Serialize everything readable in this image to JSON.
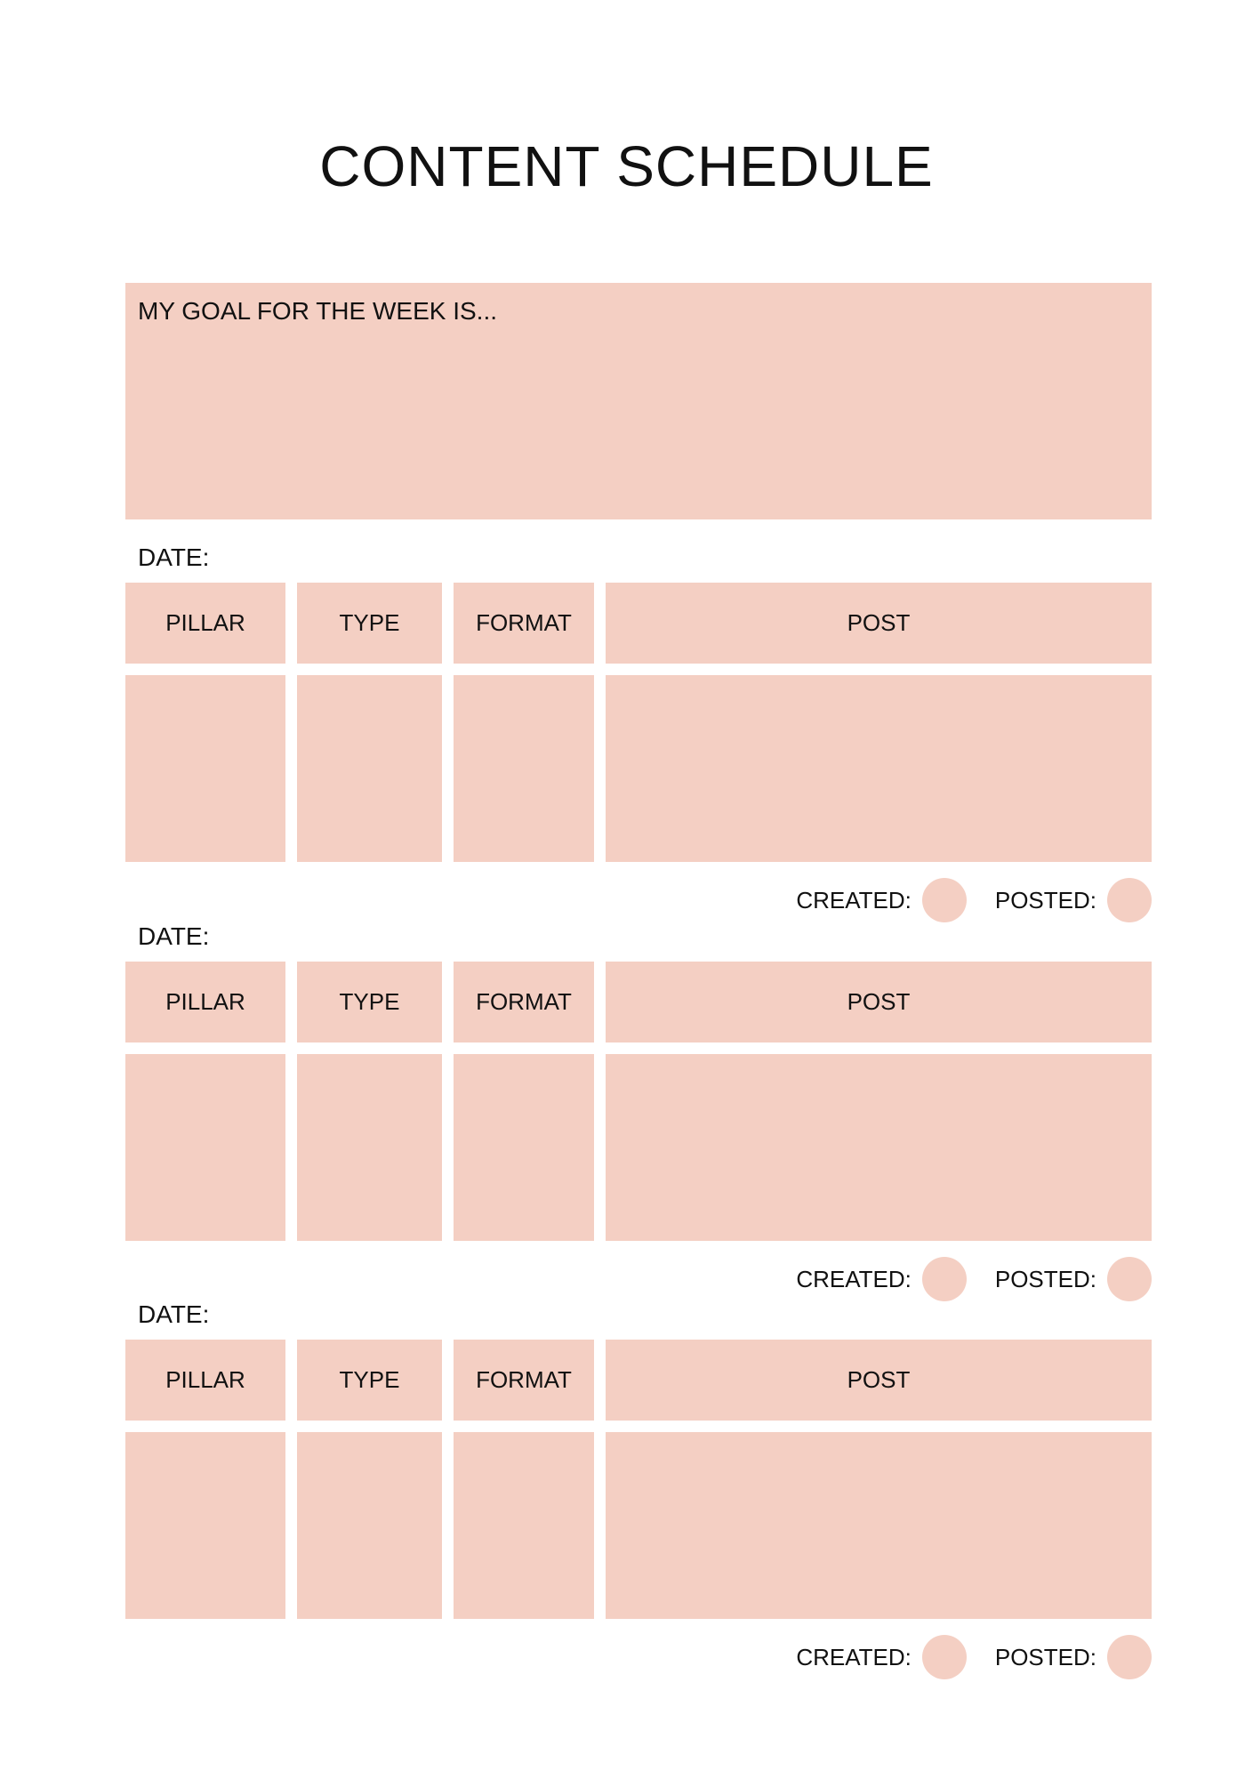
{
  "title": "CONTENT SCHEDULE",
  "goal_label": "MY GOAL FOR THE WEEK IS...",
  "accent_color": "#f4cfc3",
  "date_label": "DATE:",
  "columns": [
    "PILLAR",
    "TYPE",
    "FORMAT",
    "POST"
  ],
  "status": {
    "created": "CREATED:",
    "posted": "POSTED:"
  },
  "blocks": [
    {
      "date": "DATE:"
    },
    {
      "date": "DATE:"
    },
    {
      "date": "DATE:"
    }
  ]
}
